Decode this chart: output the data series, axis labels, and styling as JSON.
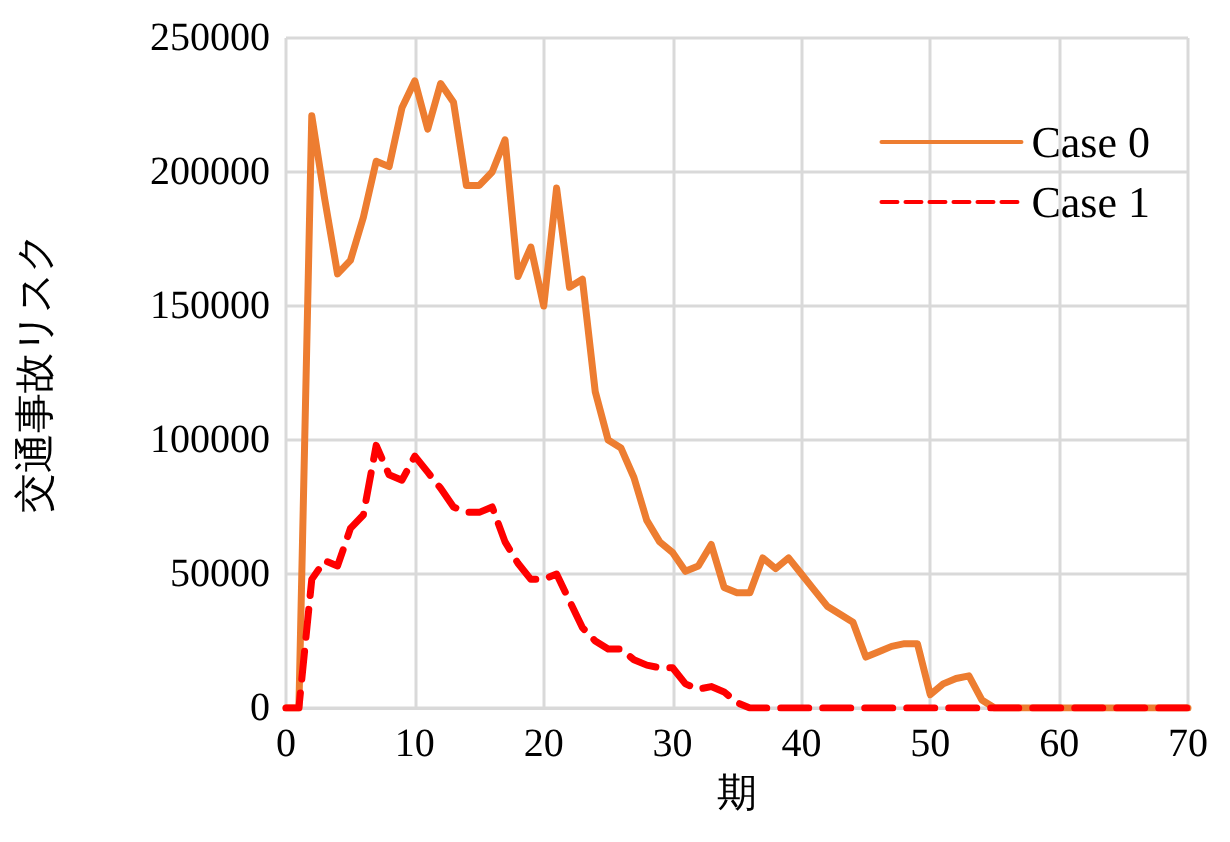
{
  "chart_data": {
    "type": "line",
    "xlabel": "期",
    "ylabel": "交通事故リスク",
    "x": [
      0,
      1,
      2,
      3,
      4,
      5,
      6,
      7,
      8,
      9,
      10,
      11,
      12,
      13,
      14,
      15,
      16,
      17,
      18,
      19,
      20,
      21,
      22,
      23,
      24,
      25,
      26,
      27,
      28,
      29,
      30,
      31,
      32,
      33,
      34,
      35,
      36,
      37,
      38,
      39,
      40,
      41,
      42,
      43,
      44,
      45,
      46,
      47,
      48,
      49,
      50,
      51,
      52,
      53,
      54,
      55,
      56,
      57,
      58,
      59,
      60,
      61,
      62,
      63,
      64,
      65,
      66,
      67,
      68,
      69,
      70
    ],
    "series": [
      {
        "name": "Case 0",
        "color": "#ed7d31",
        "line_style": "solid",
        "values": [
          0,
          0,
          221000,
          190000,
          162000,
          167000,
          183000,
          204000,
          202000,
          224000,
          234000,
          216000,
          233000,
          226000,
          195000,
          195000,
          200000,
          212000,
          161000,
          172000,
          150000,
          194000,
          157000,
          160000,
          118000,
          100000,
          97000,
          86000,
          70000,
          62000,
          58000,
          51000,
          53000,
          61000,
          45000,
          43000,
          43000,
          56000,
          52000,
          56000,
          50000,
          44000,
          38000,
          35000,
          32000,
          19000,
          21000,
          23000,
          24000,
          24000,
          5000,
          9000,
          11000,
          12000,
          3000,
          0,
          0,
          0,
          0,
          0,
          0,
          0,
          0,
          0,
          0,
          0,
          0,
          0,
          0,
          0,
          0
        ]
      },
      {
        "name": "Case 1",
        "color": "#ff0000",
        "line_style": "dashed",
        "values": [
          0,
          0,
          48000,
          55000,
          53000,
          67000,
          72000,
          98000,
          87000,
          85000,
          94000,
          88000,
          82000,
          75000,
          73000,
          73000,
          75000,
          62000,
          54000,
          48000,
          48000,
          50000,
          40000,
          30000,
          25000,
          22000,
          22000,
          18000,
          16000,
          15000,
          15000,
          9000,
          7000,
          8000,
          6000,
          2000,
          0,
          0,
          0,
          0,
          0,
          0,
          0,
          0,
          0,
          0,
          0,
          0,
          0,
          0,
          0,
          0,
          0,
          0,
          0,
          0,
          0,
          0,
          0,
          0,
          0,
          0,
          0,
          0,
          0,
          0,
          0,
          0,
          0,
          0,
          0
        ]
      }
    ],
    "xlim": [
      0,
      70
    ],
    "xticks": [
      0,
      10,
      20,
      30,
      40,
      50,
      60,
      70
    ],
    "ylim": [
      0,
      250000
    ],
    "yticks": [
      0,
      50000,
      100000,
      150000,
      200000,
      250000
    ],
    "grid": true,
    "legend": "top right",
    "marker": "none"
  }
}
